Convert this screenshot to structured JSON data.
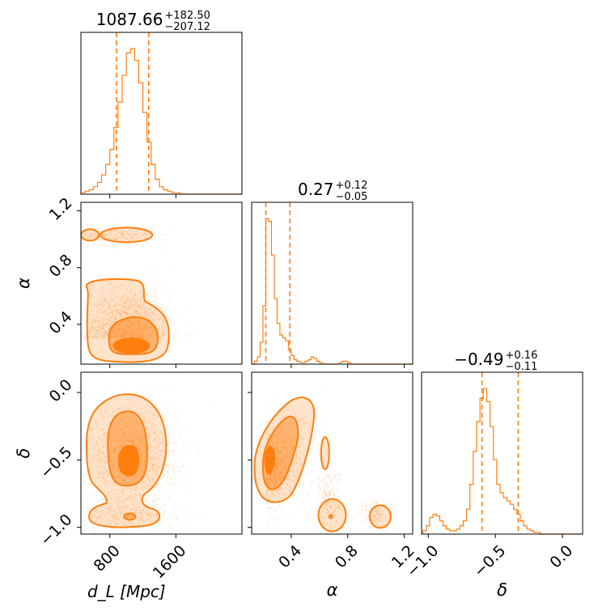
{
  "accent_color": "#ff7f0e",
  "chart_data": {
    "type": "corner",
    "parameters": [
      {
        "key": "dL",
        "label": "d_L [Mpc]",
        "median": "1087.66",
        "plus": "+182.50",
        "minus": "−207.12",
        "range": [
          450,
          2400
        ],
        "ticks": [
          800,
          1600
        ],
        "tick_labels": [
          "800",
          "1600"
        ],
        "quantiles": [
          880.5,
          1270.2
        ]
      },
      {
        "key": "alpha",
        "label": "α",
        "median": "0.27",
        "plus": "+0.12",
        "minus": "−0.05",
        "range": [
          0.12,
          1.26
        ],
        "ticks": [
          0.4,
          0.8,
          1.2
        ],
        "tick_labels": [
          "0.4",
          "0.8",
          "1.2"
        ],
        "quantiles": [
          0.22,
          0.39
        ]
      },
      {
        "key": "delta",
        "label": "δ",
        "median": "−0.49",
        "plus": "+0.16",
        "minus": "−0.11",
        "range": [
          -1.05,
          0.15
        ],
        "ticks": [
          -1.0,
          -0.5,
          0.0
        ],
        "tick_labels": [
          "−1.0",
          "−0.5",
          "0.0"
        ],
        "quantiles": [
          -0.6,
          -0.33
        ]
      }
    ],
    "histograms": {
      "dL": {
        "bin_edges_start": 450,
        "bin_width": 50,
        "counts": [
          1,
          2,
          3,
          5,
          8,
          13,
          20,
          30,
          45,
          62,
          80,
          95,
          98,
          90,
          75,
          55,
          35,
          20,
          10,
          5,
          3,
          2,
          1,
          1,
          0,
          0,
          0,
          0,
          0,
          0,
          0,
          0,
          0,
          0,
          0,
          0,
          0,
          0,
          0
        ]
      },
      "alpha": {
        "bin_edges_start": 0.12,
        "bin_width": 0.02,
        "counts": [
          0,
          2,
          5,
          15,
          40,
          100,
          98,
          75,
          45,
          28,
          20,
          18,
          16,
          10,
          6,
          3,
          2,
          1,
          1,
          2,
          3,
          5,
          4,
          2,
          1,
          0,
          0,
          0,
          0,
          0,
          0,
          1,
          2,
          2,
          1,
          0,
          0,
          0,
          0,
          0,
          0,
          0,
          0,
          0,
          0,
          0,
          0,
          0,
          0,
          0,
          0,
          0,
          0,
          0,
          0,
          0,
          0
        ]
      },
      "delta": {
        "bin_edges_start": -1.04,
        "bin_width": 0.025,
        "counts": [
          2,
          5,
          10,
          12,
          11,
          8,
          5,
          3,
          2,
          2,
          3,
          5,
          8,
          15,
          30,
          50,
          68,
          82,
          88,
          80,
          65,
          45,
          30,
          25,
          22,
          20,
          18,
          15,
          12,
          8,
          5,
          3,
          2,
          1,
          1,
          0,
          0,
          0,
          0,
          0,
          0,
          0,
          0,
          0,
          0,
          0,
          0,
          0
        ]
      }
    },
    "contours_2d": {
      "alpha_vs_dL": [
        {
          "level": "outer",
          "islands": [
            {
              "center": [
                880,
                0.37
              ],
              "shape": "region"
            },
            {
              "center": [
                1000,
                1.02
              ],
              "shape": "ellipse"
            },
            {
              "center": [
                560,
                1.03
              ],
              "shape": "ellipse"
            }
          ]
        },
        {
          "level": "middle",
          "center": [
            950,
            0.31
          ]
        },
        {
          "level": "inner",
          "center": [
            1050,
            0.25
          ]
        }
      ],
      "delta_vs_dL": [
        {
          "level": "outer",
          "islands": [
            {
              "center": [
                900,
                -0.35
              ],
              "shape": "region"
            },
            {
              "center": [
                1020,
                -0.9
              ],
              "shape": "ellipse"
            }
          ]
        },
        {
          "level": "middle",
          "center": [
            1000,
            -0.35
          ]
        },
        {
          "level": "inner",
          "center": [
            1050,
            -0.49
          ]
        }
      ],
      "delta_vs_alpha": [
        {
          "level": "outer",
          "islands": [
            {
              "center": [
                0.28,
                -0.5
              ],
              "shape": "region"
            },
            {
              "center": [
                0.64,
                -0.45
              ],
              "shape": "ellipse"
            },
            {
              "center": [
                0.69,
                -0.92
              ],
              "shape": "ellipse"
            },
            {
              "center": [
                1.03,
                -0.92
              ],
              "shape": "ellipse"
            }
          ]
        },
        {
          "level": "middle",
          "center": [
            0.26,
            -0.48
          ]
        },
        {
          "level": "inner",
          "center": [
            0.24,
            -0.49
          ]
        }
      ]
    }
  }
}
